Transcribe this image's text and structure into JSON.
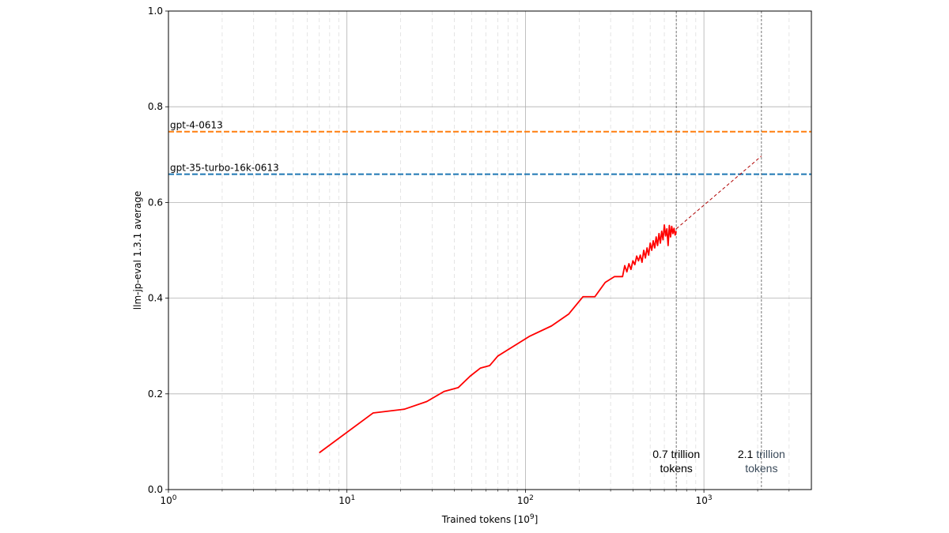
{
  "chart_data": {
    "type": "line",
    "xscale": "log",
    "xlabel": "Trained tokens [10^9]",
    "ylabel": "llm-jp-eval 1.3.1 average",
    "xlim": [
      1,
      4000
    ],
    "ylim": [
      0.0,
      1.0
    ],
    "grid": true,
    "yticks": [
      0.0,
      0.2,
      0.4,
      0.6,
      0.8,
      1.0
    ],
    "ytick_labels": [
      "0.0",
      "0.2",
      "0.4",
      "0.6",
      "0.8",
      "1.0"
    ],
    "xticks": [
      1,
      10,
      100,
      1000
    ],
    "xtick_labels": [
      "10^0",
      "10^1",
      "10^2",
      "10^3"
    ],
    "series": [
      {
        "color": "#ff0000",
        "style": "solid",
        "x": [
          7.0,
          14.0,
          21.0,
          28.0,
          35.0,
          42.0,
          49.0,
          56.0,
          63.0,
          70.0,
          105.0,
          140.0,
          175.0,
          210.0,
          245.0,
          280.0,
          315.0,
          350.0,
          360,
          370,
          380,
          390,
          400,
          410,
          420,
          430,
          440,
          450,
          460,
          470,
          480,
          490,
          500,
          510,
          520,
          530,
          540,
          550,
          560,
          570,
          580,
          590,
          600,
          610,
          620,
          630,
          640,
          650,
          660,
          670,
          680,
          690,
          700
        ],
        "y": [
          0.077,
          0.16,
          0.168,
          0.184,
          0.205,
          0.213,
          0.237,
          0.254,
          0.259,
          0.279,
          0.32,
          0.342,
          0.367,
          0.403,
          0.403,
          0.433,
          0.445,
          0.445,
          0.468,
          0.455,
          0.472,
          0.46,
          0.478,
          0.47,
          0.488,
          0.478,
          0.49,
          0.475,
          0.5,
          0.484,
          0.505,
          0.49,
          0.515,
          0.5,
          0.52,
          0.505,
          0.528,
          0.51,
          0.535,
          0.515,
          0.54,
          0.522,
          0.553,
          0.53,
          0.545,
          0.51,
          0.552,
          0.528,
          0.55,
          0.535,
          0.546,
          0.532,
          0.54
        ]
      },
      {
        "color": "#b00000",
        "style": "dashed",
        "x": [
          700,
          2100
        ],
        "y": [
          0.545,
          0.697
        ]
      }
    ],
    "reference_lines": [
      {
        "name": "gpt-4-0613",
        "y": 0.748,
        "color": "#ff7f0e"
      },
      {
        "name": "gpt-35-turbo-16k-0613",
        "y": 0.659,
        "color": "#1f77b4"
      }
    ],
    "vertical_markers": [
      {
        "x": 700,
        "label_line1": "0.7 trillion",
        "label_line2": "tokens",
        "color": "#000000"
      },
      {
        "x": 2100,
        "label_line1_a": "2.1",
        "label_line1_b": " trillion",
        "label_line2": "tokens",
        "color": "#000000",
        "color_b": "#3a4a5a"
      }
    ]
  }
}
